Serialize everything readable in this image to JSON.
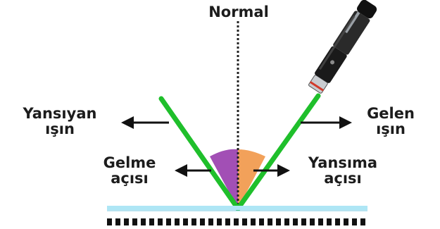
{
  "normal_label": "Normal",
  "reflected_ray": {
    "line1": "Yansıyan",
    "line2": "ışın"
  },
  "incident_ray": {
    "line1": "Gelen",
    "line2": "ışın"
  },
  "incidence_angle": {
    "line1": "Gelme",
    "line2": "açısı"
  },
  "reflection_angle": {
    "line1": "Yansıma",
    "line2": "açısı"
  },
  "colors": {
    "ray": "#1fbf2b",
    "incidence_angle": "#a24fb5",
    "reflection_angle": "#f2a15a",
    "mirror": "#aee6f5",
    "text": "#1c1c1c"
  }
}
